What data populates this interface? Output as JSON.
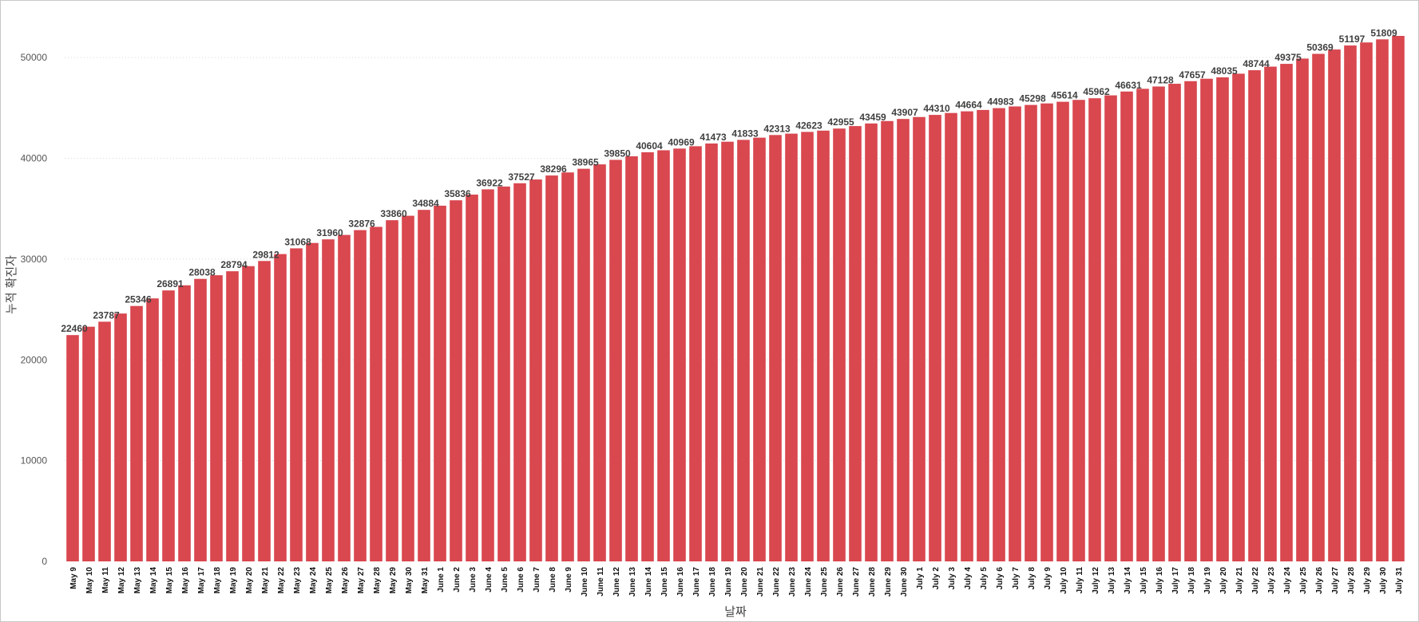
{
  "chart_data": {
    "type": "bar",
    "title": "",
    "xlabel": "날짜",
    "ylabel": "누적 확진자",
    "ylim": [
      0,
      55000
    ],
    "yticks": [
      0,
      10000,
      20000,
      30000,
      40000,
      50000
    ],
    "grid": true,
    "bar_color": "#d9474f",
    "categories": [
      "May 9",
      "May 10",
      "May 11",
      "May 12",
      "May 13",
      "May 14",
      "May 15",
      "May 16",
      "May 17",
      "May 18",
      "May 19",
      "May 20",
      "May 21",
      "May 22",
      "May 23",
      "May 24",
      "May 25",
      "May 26",
      "May 27",
      "May 28",
      "May 29",
      "May 30",
      "May 31",
      "June 1",
      "June 2",
      "June 3",
      "June 4",
      "June 5",
      "June 6",
      "June 7",
      "June 8",
      "June 9",
      "June 10",
      "June 11",
      "June 12",
      "June 13",
      "June 14",
      "June 15",
      "June 16",
      "June 17",
      "June 18",
      "June 19",
      "June 20",
      "June 21",
      "June 22",
      "June 23",
      "June 24",
      "June 25",
      "June 26",
      "June 27",
      "June 28",
      "June 29",
      "June 30",
      "July 1",
      "July 2",
      "July 3",
      "July 4",
      "July 5",
      "July 6",
      "July 7",
      "July 8",
      "July 9",
      "July 10",
      "July 11",
      "July 12",
      "July 13",
      "July 14",
      "July 15",
      "July 16",
      "July 17",
      "July 18",
      "July 19",
      "July 20",
      "July 21",
      "July 22",
      "July 23",
      "July 24",
      "July 25",
      "July 26",
      "July 27",
      "July 28",
      "July 29",
      "July 30",
      "July 31"
    ],
    "values": [
      22460,
      23290,
      23787,
      24600,
      25346,
      26100,
      26891,
      27400,
      28038,
      28400,
      28794,
      29300,
      29812,
      30500,
      31068,
      31600,
      31960,
      32400,
      32876,
      33200,
      33860,
      34300,
      34884,
      35300,
      35836,
      36400,
      36922,
      37200,
      37527,
      37900,
      38296,
      38600,
      38965,
      39400,
      39850,
      40200,
      40604,
      40800,
      40969,
      41200,
      41473,
      41650,
      41833,
      42050,
      42313,
      42450,
      42623,
      42750,
      42955,
      43200,
      43459,
      43700,
      43907,
      44100,
      44310,
      44500,
      44664,
      44800,
      44983,
      45150,
      45298,
      45450,
      45614,
      45800,
      45962,
      46250,
      46631,
      46900,
      47128,
      47400,
      47657,
      47900,
      48035,
      48400,
      48744,
      49100,
      49375,
      49900,
      50369,
      50800,
      51197,
      51500,
      51809,
      52150
    ],
    "labeled_values": [
      22460,
      23787,
      25346,
      26891,
      28038,
      28794,
      29812,
      31068,
      31960,
      32876,
      33860,
      34884,
      35836,
      36922,
      37527,
      38296,
      38965,
      39850,
      40604,
      40969,
      41473,
      41833,
      42313,
      42623,
      42955,
      43459,
      43907,
      44310,
      44664,
      44983,
      45298,
      45614,
      45962,
      46631,
      47128,
      47657,
      48035,
      48744,
      49375,
      50369,
      51197,
      51809
    ],
    "labeled_indices": [
      0,
      2,
      4,
      6,
      8,
      10,
      12,
      14,
      16,
      18,
      20,
      22,
      24,
      26,
      28,
      30,
      32,
      34,
      36,
      38,
      40,
      42,
      44,
      46,
      48,
      50,
      52,
      54,
      56,
      58,
      60,
      62,
      64,
      66,
      68,
      70,
      72,
      74,
      76,
      78,
      80,
      82
    ]
  }
}
